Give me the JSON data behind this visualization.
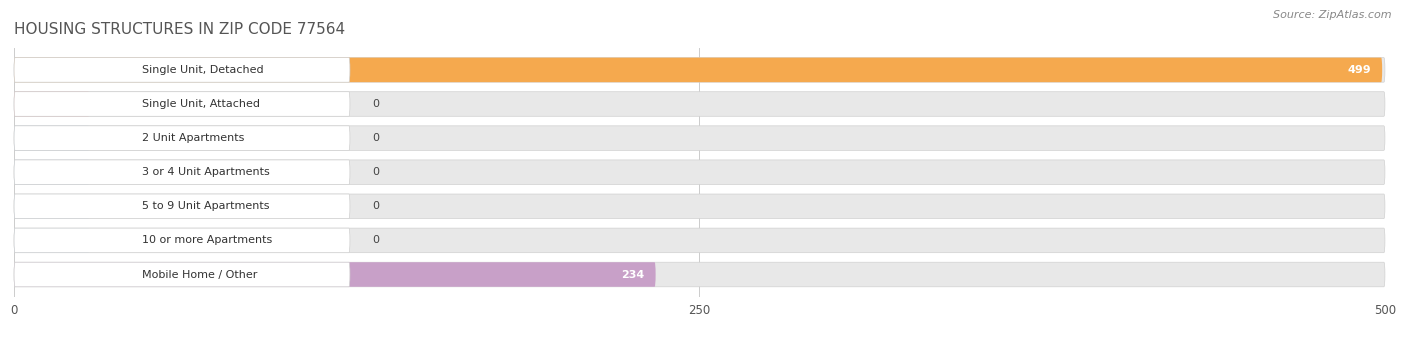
{
  "title": "HOUSING STRUCTURES IN ZIP CODE 77564",
  "source": "Source: ZipAtlas.com",
  "categories": [
    "Single Unit, Detached",
    "Single Unit, Attached",
    "2 Unit Apartments",
    "3 or 4 Unit Apartments",
    "5 to 9 Unit Apartments",
    "10 or more Apartments",
    "Mobile Home / Other"
  ],
  "values": [
    499,
    0,
    0,
    0,
    0,
    0,
    234
  ],
  "bar_colors": [
    "#F5A94E",
    "#F08888",
    "#A8C4E0",
    "#A8C4E0",
    "#A8C4E0",
    "#A8C4E0",
    "#C8A0C8"
  ],
  "value_label_colors": [
    "white",
    "black",
    "black",
    "black",
    "black",
    "black",
    "black"
  ],
  "xlim": [
    0,
    500
  ],
  "xticks": [
    0,
    250,
    500
  ],
  "background_color": "#ffffff",
  "bar_bg_color": "#e8e8e8",
  "title_fontsize": 11,
  "source_fontsize": 8,
  "label_fontsize": 8,
  "value_fontsize": 8,
  "figsize": [
    14.06,
    3.41
  ],
  "dpi": 100
}
